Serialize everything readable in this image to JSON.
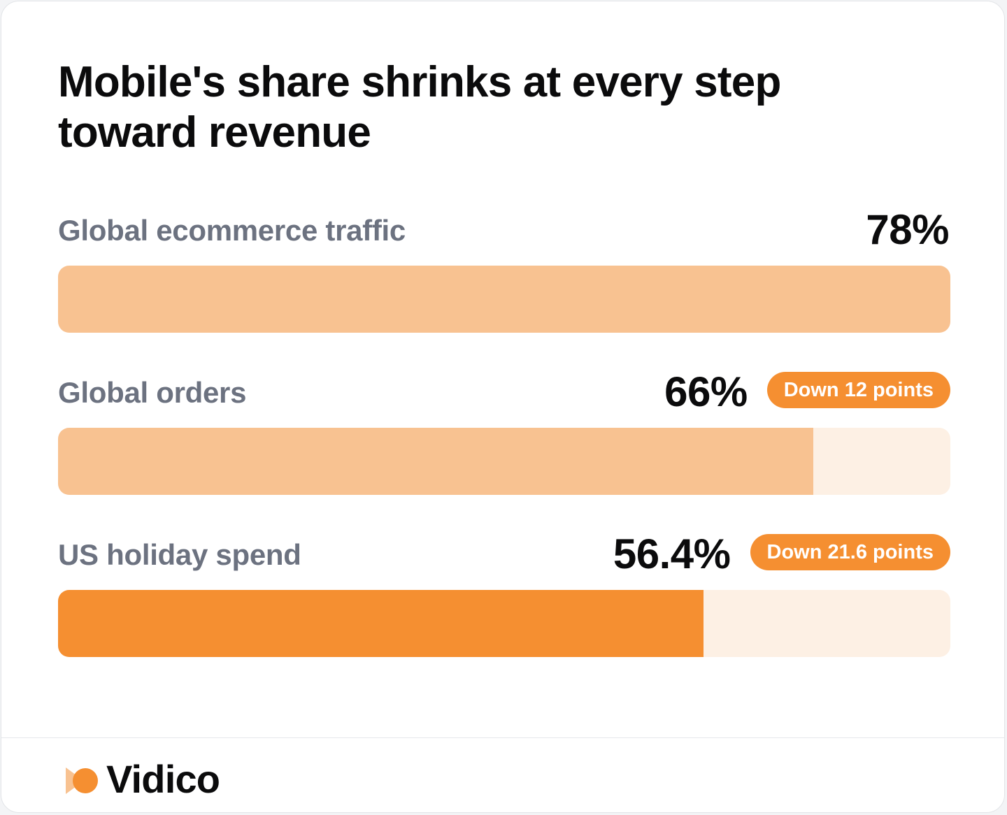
{
  "title": "Mobile's share shrinks at every step toward revenue",
  "chart_data": {
    "type": "bar",
    "orientation": "horizontal",
    "title": "Mobile's share shrinks at every step toward revenue",
    "categories": [
      "Global ecommerce traffic",
      "Global orders",
      "US holiday spend"
    ],
    "values": [
      78,
      66,
      56.4
    ],
    "value_labels": [
      "78%",
      "66%",
      "56.4%"
    ],
    "annotations": [
      "",
      "Down 12 points",
      "Down 21.6 points"
    ],
    "xlim": [
      0,
      78
    ],
    "grid": false,
    "colors": {
      "fill_light": "#f8c291",
      "fill_strong": "#f58f31",
      "track": "#fdf0e4",
      "badge": "#f58f31"
    }
  },
  "footer": {
    "brand": "Vidico",
    "logo_icon": "vidico-logo-icon"
  }
}
